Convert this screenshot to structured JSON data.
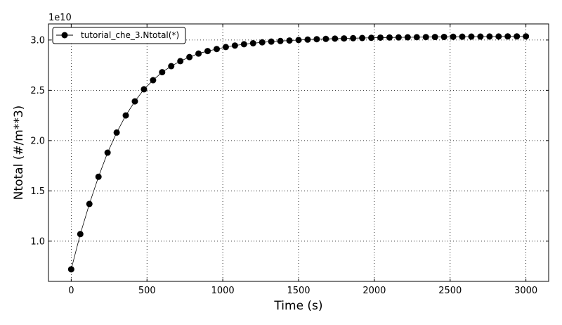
{
  "chart_data": {
    "type": "line",
    "title": "",
    "xlabel": "Time (s)",
    "ylabel": "Ntotal (#/m**3)",
    "y_offset_label": "1e10",
    "xlim": [
      -150,
      3150
    ],
    "ylim": [
      0.6,
      3.16
    ],
    "x_ticks": [
      0,
      500,
      1000,
      1500,
      2000,
      2500,
      3000
    ],
    "x_tick_labels": [
      "0",
      "500",
      "1000",
      "1500",
      "2000",
      "2500",
      "3000"
    ],
    "y_ticks": [
      1.0,
      1.5,
      2.0,
      2.5,
      3.0
    ],
    "y_tick_labels": [
      "1.0",
      "1.5",
      "2.0",
      "2.5",
      "3.0"
    ],
    "grid": true,
    "legend_position": "top-left",
    "marker": "circle",
    "line_color": "#000000",
    "marker_color": "#000000",
    "series": [
      {
        "name": "tutorial_che_3.Ntotal(*)",
        "x": [
          0,
          60,
          120,
          180,
          240,
          300,
          360,
          420,
          480,
          540,
          600,
          660,
          720,
          780,
          840,
          900,
          960,
          1020,
          1080,
          1140,
          1200,
          1260,
          1320,
          1380,
          1440,
          1500,
          1560,
          1620,
          1680,
          1740,
          1800,
          1860,
          1920,
          1980,
          2040,
          2100,
          2160,
          2220,
          2280,
          2340,
          2400,
          2460,
          2520,
          2580,
          2640,
          2700,
          2760,
          2820,
          2880,
          2940,
          3000
        ],
        "values": [
          0.72,
          1.07,
          1.37,
          1.64,
          1.88,
          2.08,
          2.25,
          2.39,
          2.51,
          2.6,
          2.68,
          2.74,
          2.79,
          2.83,
          2.865,
          2.89,
          2.91,
          2.93,
          2.945,
          2.958,
          2.968,
          2.977,
          2.984,
          2.99,
          2.995,
          3.0,
          3.004,
          3.008,
          3.011,
          3.014,
          3.016,
          3.018,
          3.02,
          3.022,
          3.024,
          3.025,
          3.026,
          3.027,
          3.028,
          3.029,
          3.03,
          3.031,
          3.032,
          3.033,
          3.034,
          3.034,
          3.035,
          3.035,
          3.036,
          3.036,
          3.036
        ]
      }
    ]
  }
}
